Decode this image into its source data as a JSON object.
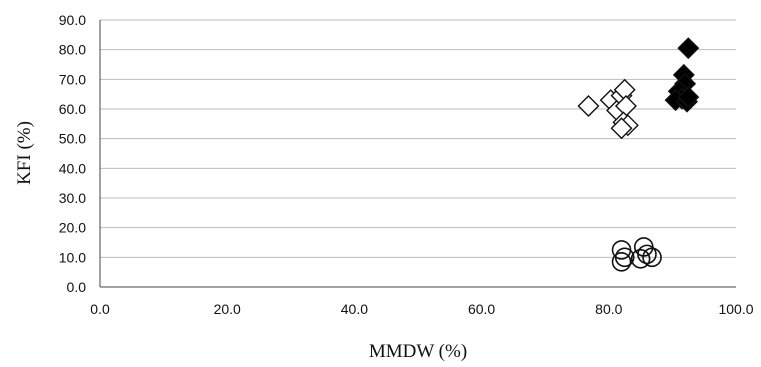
{
  "chart_data": {
    "type": "scatter",
    "xlabel": "MMDW (%)",
    "ylabel": "KFI (%)",
    "xlim": [
      0,
      100
    ],
    "ylim": [
      0,
      90
    ],
    "x_ticks": [
      "0.0",
      "20.0",
      "40.0",
      "60.0",
      "80.0",
      "100.0"
    ],
    "y_ticks": [
      "0.0",
      "10.0",
      "20.0",
      "30.0",
      "40.0",
      "50.0",
      "60.0",
      "70.0",
      "80.0",
      "90.0"
    ],
    "grid": true,
    "legend": "none",
    "series": [
      {
        "marker": "diamond-open",
        "points": [
          [
            76.8,
            61.0
          ],
          [
            80.3,
            63.0
          ],
          [
            81.3,
            59.5
          ],
          [
            82.0,
            64.5
          ],
          [
            82.5,
            66.5
          ],
          [
            82.7,
            61.0
          ],
          [
            82.3,
            55.5
          ],
          [
            83.0,
            54.5
          ],
          [
            82.0,
            53.5
          ]
        ]
      },
      {
        "marker": "diamond-filled",
        "points": [
          [
            92.5,
            80.5
          ],
          [
            91.8,
            71.5
          ],
          [
            92.0,
            68.5
          ],
          [
            91.0,
            66.0
          ],
          [
            91.5,
            63.5
          ],
          [
            90.5,
            63.0
          ],
          [
            92.3,
            62.5
          ],
          [
            92.5,
            64.0
          ]
        ]
      },
      {
        "marker": "circle-open",
        "points": [
          [
            82.0,
            12.5
          ],
          [
            82.5,
            10.0
          ],
          [
            82.0,
            8.5
          ],
          [
            85.5,
            13.5
          ],
          [
            86.0,
            11.0
          ],
          [
            85.0,
            9.5
          ],
          [
            86.8,
            10.0
          ]
        ]
      }
    ]
  }
}
